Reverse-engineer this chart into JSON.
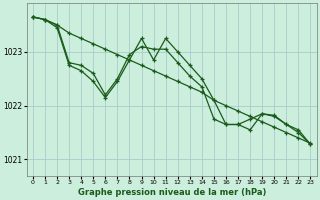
{
  "title": "Graphe pression niveau de la mer (hPa)",
  "bg_color": "#cceedd",
  "grid_color": "#aacccc",
  "line_color": "#1a5c1a",
  "x_ticks": [
    0,
    1,
    2,
    3,
    4,
    5,
    6,
    7,
    8,
    9,
    10,
    11,
    12,
    13,
    14,
    15,
    16,
    17,
    18,
    19,
    20,
    21,
    22,
    23
  ],
  "y_ticks": [
    1021,
    1022,
    1023
  ],
  "ylim": [
    1020.7,
    1023.9
  ],
  "xlim": [
    -0.5,
    23.5
  ],
  "series1": [
    1023.65,
    1023.6,
    1023.5,
    1023.35,
    1023.25,
    1023.15,
    1023.05,
    1022.95,
    1022.85,
    1022.75,
    1022.65,
    1022.55,
    1022.45,
    1022.35,
    1022.25,
    1022.1,
    1022.0,
    1021.9,
    1021.8,
    1021.7,
    1021.6,
    1021.5,
    1021.4,
    1021.3
  ],
  "series2": [
    1023.65,
    1023.6,
    1023.5,
    1022.8,
    1022.75,
    1022.6,
    1022.2,
    1022.5,
    1022.95,
    1023.1,
    1023.05,
    1023.05,
    1022.8,
    1022.55,
    1022.35,
    1021.75,
    1021.65,
    1021.65,
    1021.75,
    1021.85,
    1021.8,
    1021.65,
    1021.55,
    1021.28
  ],
  "series3": [
    1023.65,
    1023.6,
    1023.45,
    1022.75,
    1022.65,
    1022.45,
    1022.15,
    1022.45,
    1022.85,
    1023.25,
    1022.85,
    1023.25,
    1023.0,
    1022.75,
    1022.5,
    1022.1,
    1021.65,
    1021.65,
    1021.55,
    1021.85,
    1021.82,
    1021.65,
    1021.5,
    1021.28
  ],
  "marker": "+",
  "markersize": 3,
  "linewidth": 0.9
}
